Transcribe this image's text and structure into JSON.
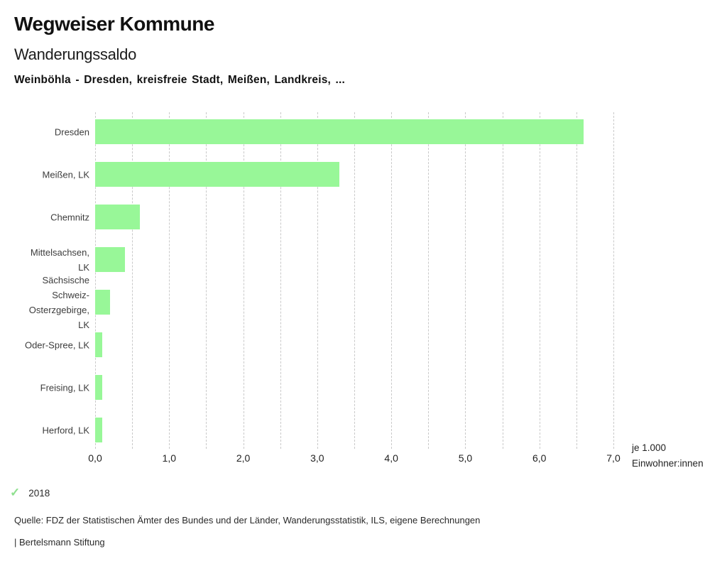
{
  "header": {
    "title": "Wegweiser Kommune",
    "subtitle": "Wanderungssaldo",
    "comparison": "Weinböhla - Dresden, kreisfreie Stadt, Meißen, Landkreis, ..."
  },
  "chart_data": {
    "type": "bar",
    "orientation": "horizontal",
    "title": "Wanderungssaldo",
    "subtitle": "Weinböhla - Dresden, kreisfreie Stadt, Meißen, Landkreis, ...",
    "categories": [
      "Dresden",
      "Meißen, LK",
      "Chemnitz",
      "Mittelsachsen, LK",
      "Sächsische Schweiz-Osterzgebirge, LK",
      "Oder-Spree, LK",
      "Freising, LK",
      "Herford, LK"
    ],
    "categories_display": [
      [
        "Dresden"
      ],
      [
        "Meißen, LK"
      ],
      [
        "Chemnitz"
      ],
      [
        "Mittelsachsen,",
        "LK"
      ],
      [
        "Sächsische",
        "Schweiz-",
        "Osterzgebirge,",
        "LK"
      ],
      [
        "Oder-Spree, LK"
      ],
      [
        "Freising, LK"
      ],
      [
        "Herford, LK"
      ]
    ],
    "values": [
      6.6,
      3.3,
      0.6,
      0.4,
      0.2,
      0.1,
      0.1,
      0.1
    ],
    "series_year": "2018",
    "xlim": [
      0,
      7
    ],
    "x_ticks": [
      0,
      1,
      2,
      3,
      4,
      5,
      6,
      7
    ],
    "x_tick_labels": [
      "0,0",
      "1,0",
      "2,0",
      "3,0",
      "4,0",
      "5,0",
      "6,0",
      "7,0"
    ],
    "grid_interval": 0.5,
    "grid": true,
    "xlabel": "je 1.000 Einwohner:innen",
    "unit_label_lines": [
      "je 1.000",
      "Einwohner:innen"
    ],
    "bar_color": "#98f798",
    "grid_color": "#c9c9c9",
    "legend": {
      "position": "bottom-left",
      "items": [
        {
          "label": "2018",
          "marker": "check",
          "color": "#8fe08f"
        }
      ]
    }
  },
  "footer": {
    "source": "Quelle: FDZ der Statistischen Ämter des Bundes und der Länder, Wanderungsstatistik, ILS, eigene Berechnungen",
    "brand": "| Bertelsmann Stiftung"
  }
}
